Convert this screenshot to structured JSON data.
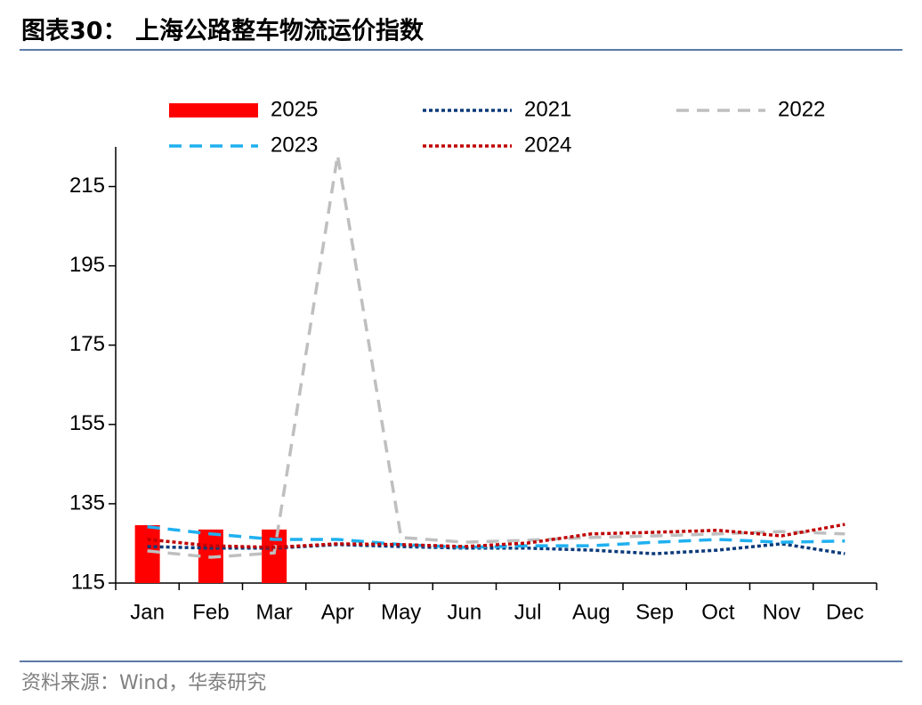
{
  "chart_data": {
    "type": "line",
    "title": "图表30： 上海公路整车物流运价指数",
    "source": "资料来源：Wind，华泰研究",
    "categories": [
      "Jan",
      "Feb",
      "Mar",
      "Apr",
      "May",
      "Jun",
      "Jul",
      "Aug",
      "Sep",
      "Oct",
      "Nov",
      "Dec"
    ],
    "ylim": [
      115,
      225
    ],
    "yticks": [
      115,
      135,
      155,
      175,
      195,
      215
    ],
    "grid": false,
    "legend": "top",
    "series": [
      {
        "name": "2025",
        "type": "bar",
        "color": "#ff0000",
        "values": [
          129.6,
          128.5,
          128.5,
          null,
          null,
          null,
          null,
          null,
          null,
          null,
          null,
          null
        ]
      },
      {
        "name": "2021",
        "style": "dotted",
        "color": "#0a3a7a",
        "values": [
          124.2,
          123.8,
          123.8,
          124.7,
          124.2,
          123.8,
          123.8,
          123.3,
          122.4,
          123.3,
          124.9,
          122.4
        ]
      },
      {
        "name": "2022",
        "style": "dashed",
        "color": "#bfbfbf",
        "values": [
          123.1,
          121.5,
          122.6,
          222.9,
          126.5,
          125.3,
          125.8,
          126.5,
          126.9,
          127.4,
          128.0,
          127.4
        ]
      },
      {
        "name": "2023",
        "style": "dashed",
        "color": "#1fb0f0",
        "values": [
          129.2,
          127.4,
          126.0,
          126.0,
          124.7,
          124.0,
          124.4,
          124.4,
          125.3,
          126.0,
          125.3,
          125.6
        ]
      },
      {
        "name": "2024",
        "style": "dotted",
        "color": "#c00000",
        "values": [
          126.0,
          124.4,
          124.0,
          124.9,
          124.7,
          124.2,
          125.1,
          127.4,
          127.8,
          128.3,
          126.9,
          129.8
        ]
      }
    ]
  }
}
